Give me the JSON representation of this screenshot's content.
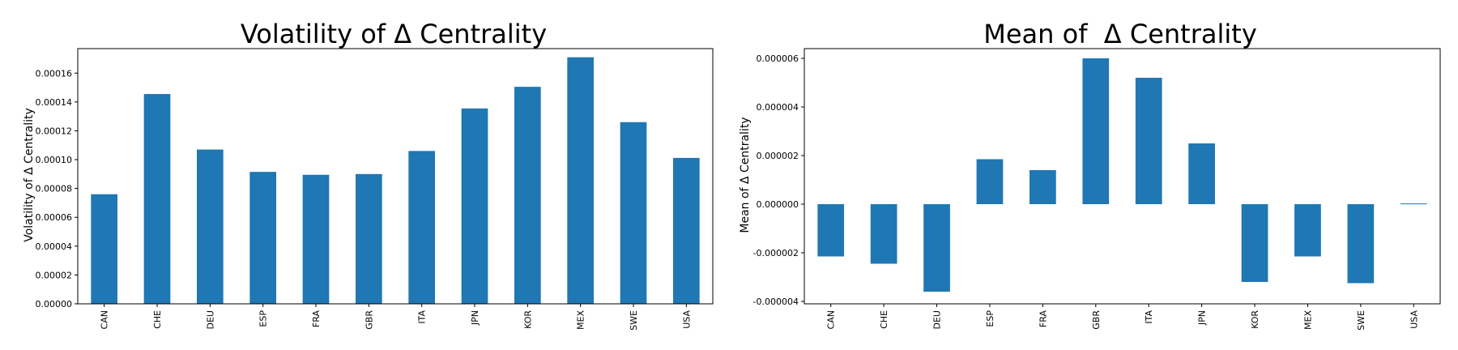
{
  "chart_data": [
    {
      "type": "bar",
      "title": "Volatility of Δ Centrality",
      "xlabel": "",
      "ylabel": "Volatility of Δ Centrality",
      "categories": [
        "CAN",
        "CHE",
        "DEU",
        "ESP",
        "FRA",
        "GBR",
        "ITA",
        "JPN",
        "KOR",
        "MEX",
        "SWE",
        "USA"
      ],
      "values": [
        7.6e-05,
        0.0001455,
        0.000107,
        9.15e-05,
        8.95e-05,
        9e-05,
        0.000106,
        0.0001355,
        0.0001505,
        0.000171,
        0.000126,
        0.0001012
      ],
      "ylim": [
        0,
        0.000177
      ],
      "yticks": [
        0,
        2e-05,
        4e-05,
        6e-05,
        8e-05,
        0.0001,
        0.00012,
        0.00014,
        0.00016
      ],
      "ytick_labels": [
        "0.00000",
        "0.00002",
        "0.00004",
        "0.00006",
        "0.00008",
        "0.00010",
        "0.00012",
        "0.00014",
        "0.00016"
      ],
      "color": "#1f77b4",
      "grid": false
    },
    {
      "type": "bar",
      "title": "Mean of  Δ Centrality",
      "xlabel": "",
      "ylabel": "Mean of Δ Centrality",
      "categories": [
        "CAN",
        "CHE",
        "DEU",
        "ESP",
        "FRA",
        "GBR",
        "ITA",
        "JPN",
        "KOR",
        "MEX",
        "SWE",
        "USA"
      ],
      "values": [
        -2.15e-06,
        -2.45e-06,
        -3.6e-06,
        1.85e-06,
        1.4e-06,
        6e-06,
        5.2e-06,
        2.5e-06,
        -3.2e-06,
        -2.15e-06,
        -3.25e-06,
        3e-08
      ],
      "ylim": [
        -4.1e-06,
        6.4e-06
      ],
      "yticks": [
        -4e-06,
        -2e-06,
        0,
        2e-06,
        4e-06,
        6e-06
      ],
      "ytick_labels": [
        "-0.000004",
        "-0.000002",
        "0.000000",
        "0.000002",
        "0.000004",
        "0.000006"
      ],
      "color": "#1f77b4",
      "grid": false
    }
  ]
}
